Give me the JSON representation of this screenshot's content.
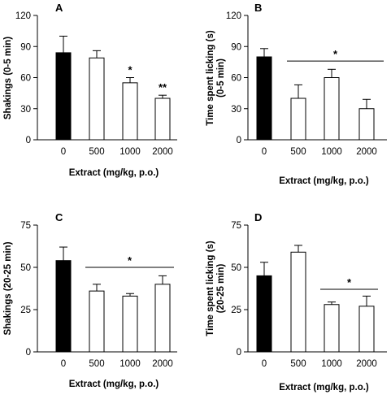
{
  "chart_data": [
    {
      "type": "bar",
      "panel": "A",
      "categories": [
        "0",
        "500",
        "1000",
        "2000"
      ],
      "values": [
        84,
        79,
        55,
        40
      ],
      "errors": [
        16,
        7,
        5,
        3
      ],
      "bar_colors": [
        "#000000",
        "#ffffff",
        "#ffffff",
        "#ffffff"
      ],
      "xlabel": "Extract (mg/kg, p.o.)",
      "ylabel": "Shakings (0-5 min)",
      "ylim": [
        0,
        120
      ],
      "yticks": [
        0,
        30,
        60,
        90,
        120
      ],
      "annotations": [
        {
          "text": "*",
          "category": "1000"
        },
        {
          "text": "**",
          "category": "2000"
        }
      ],
      "grid": false
    },
    {
      "type": "bar",
      "panel": "B",
      "categories": [
        "0",
        "500",
        "1000",
        "2000"
      ],
      "values": [
        80,
        40,
        60,
        30
      ],
      "errors": [
        8,
        13,
        8,
        9
      ],
      "bar_colors": [
        "#000000",
        "#ffffff",
        "#ffffff",
        "#ffffff"
      ],
      "xlabel": "Extract (mg/kg, p.o.)",
      "ylabel": "Time spent licking (s) (0-5 min)",
      "ylabel_lines": [
        "Time spent licking (s)",
        "(0-5 min)"
      ],
      "ylim": [
        0,
        120
      ],
      "yticks": [
        0,
        30,
        60,
        90,
        120
      ],
      "significance_line": {
        "text": "*",
        "from": "500",
        "to": "2000",
        "y": 76
      },
      "grid": false
    },
    {
      "type": "bar",
      "panel": "C",
      "categories": [
        "0",
        "500",
        "1000",
        "2000"
      ],
      "values": [
        54,
        36,
        33,
        40
      ],
      "errors": [
        8,
        4,
        1.5,
        5
      ],
      "bar_colors": [
        "#000000",
        "#ffffff",
        "#ffffff",
        "#ffffff"
      ],
      "xlabel": "Extract (mg/kg, p.o.)",
      "ylabel": "Shakings (20-25 min)",
      "ylim": [
        0,
        75
      ],
      "yticks": [
        0,
        25,
        50,
        75
      ],
      "significance_line": {
        "text": "*",
        "from": "500",
        "to": "2000",
        "y": 50
      },
      "grid": false
    },
    {
      "type": "bar",
      "panel": "D",
      "categories": [
        "0",
        "500",
        "1000",
        "2000"
      ],
      "values": [
        45,
        59,
        28,
        27
      ],
      "errors": [
        8,
        4,
        1.5,
        6
      ],
      "bar_colors": [
        "#000000",
        "#ffffff",
        "#ffffff",
        "#ffffff"
      ],
      "xlabel": "Extract (mg/kg, p.o.)",
      "ylabel": "Time spent licking (s) (20-25 min)",
      "ylabel_lines": [
        "Time spent licking (s)",
        "(20-25 min)"
      ],
      "ylim": [
        0,
        75
      ],
      "yticks": [
        0,
        25,
        50,
        75
      ],
      "significance_line": {
        "text": "*",
        "from": "1000",
        "to": "2000",
        "y": 37
      },
      "grid": false
    }
  ]
}
